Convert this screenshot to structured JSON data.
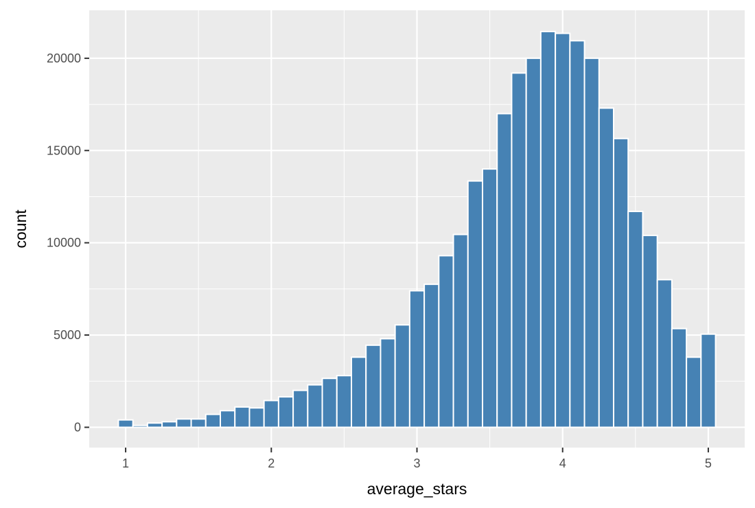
{
  "chart_data": {
    "type": "bar",
    "histogram": true,
    "title": "",
    "xlabel": "average_stars",
    "ylabel": "count",
    "xlim": [
      0.75,
      5.25
    ],
    "ylim": [
      -1100,
      22600
    ],
    "x_ticks": [
      1,
      2,
      3,
      4,
      5
    ],
    "x_tick_labels": [
      "1",
      "2",
      "3",
      "4",
      "5"
    ],
    "y_ticks": [
      0,
      5000,
      10000,
      15000,
      20000
    ],
    "y_tick_labels": [
      "0",
      "5000",
      "10000",
      "15000",
      "20000"
    ],
    "x_minor_ticks": [
      1.5,
      2.5,
      3.5,
      4.5
    ],
    "y_minor_ticks": [
      2500,
      7500,
      12500,
      17500
    ],
    "grid": true,
    "legend": "none",
    "bin_width": 0.1,
    "bin_centers": [
      1.0,
      1.1,
      1.2,
      1.3,
      1.4,
      1.5,
      1.6,
      1.7,
      1.8,
      1.9,
      2.0,
      2.1,
      2.2,
      2.3,
      2.4,
      2.5,
      2.6,
      2.7,
      2.8,
      2.9,
      3.0,
      3.1,
      3.2,
      3.3,
      3.4,
      3.5,
      3.6,
      3.7,
      3.8,
      3.9,
      4.0,
      4.1,
      4.2,
      4.3,
      4.4,
      4.5,
      4.6,
      4.7,
      4.8,
      4.9,
      5.0
    ],
    "values": [
      400,
      100,
      230,
      300,
      450,
      450,
      700,
      900,
      1100,
      1050,
      1450,
      1650,
      2000,
      2300,
      2650,
      2800,
      3800,
      4450,
      4800,
      5550,
      7400,
      7750,
      9300,
      10450,
      13350,
      14000,
      17000,
      19200,
      20000,
      21450,
      21350,
      20950,
      20000,
      17300,
      15650,
      11700,
      10400,
      8000,
      5350,
      3800,
      5050
    ],
    "bar_color": "#4682B4",
    "bar_outline_color": "#FFFFFF",
    "panel_color": "#EBEBEB",
    "grid_color": "#FFFFFF"
  }
}
